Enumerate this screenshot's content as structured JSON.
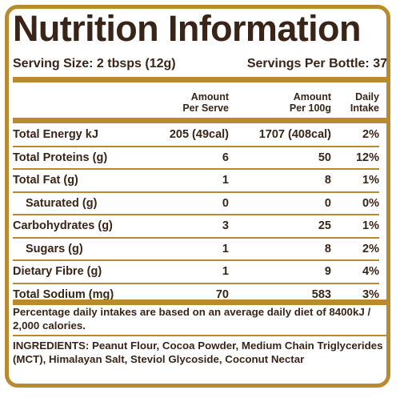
{
  "title": "Nutrition Information",
  "serving": {
    "size": "Serving Size: 2 tbsps (12g)",
    "per_bottle": "Servings Per Bottle: 37"
  },
  "columns": {
    "per_serve": [
      "Amount",
      "Per Serve"
    ],
    "per_100g": [
      "Amount",
      "Per 100g"
    ],
    "daily_intake": [
      "Daily",
      "Intake"
    ]
  },
  "rows": [
    {
      "name": "Total Energy kJ",
      "per_serve": "205 (49cal)",
      "per_100g": "1707 (408cal)",
      "daily": "2%"
    },
    {
      "name": "Total Proteins (g)",
      "per_serve": "6",
      "per_100g": "50",
      "daily": "12%"
    },
    {
      "name": "Total Fat (g)",
      "per_serve": "1",
      "per_100g": "8",
      "daily": "1%"
    },
    {
      "name": "Saturated (g)",
      "per_serve": "0",
      "per_100g": "0",
      "daily": "0%"
    },
    {
      "name": "Carbohydrates (g)",
      "per_serve": "3",
      "per_100g": "25",
      "daily": "1%"
    },
    {
      "name": "Sugars (g)",
      "per_serve": "1",
      "per_100g": "8",
      "daily": "2%"
    },
    {
      "name": "Dietary Fibre (g)",
      "per_serve": "1",
      "per_100g": "9",
      "daily": "4%"
    },
    {
      "name": "Total Sodium (mg)",
      "per_serve": "70",
      "per_100g": "583",
      "daily": "3%"
    }
  ],
  "footnote": "Percentage daily intakes are based on an average daily diet of 8400kJ / 2,000 calories.",
  "ingredients": "INGREDIENTS: Peanut Flour, Cocoa Powder, Medium Chain Triglycerides (MCT), Himalayan Salt, Steviol Glycoside, Coconut Nectar",
  "colors": {
    "border_gold": "#b98a2e",
    "text_brown": "#3a2418",
    "background": "#ffffff"
  }
}
